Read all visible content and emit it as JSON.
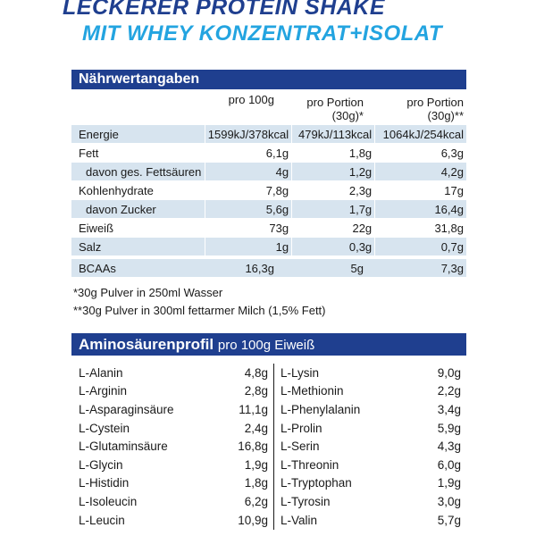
{
  "header": {
    "line1": "LECKERER PROTEIN SHAKE",
    "line2": "MIT WHEY KONZENTRAT+ISOLAT"
  },
  "nutrition": {
    "title": "Nährwertangaben",
    "columns": [
      "pro 100g",
      "pro Portion",
      "(30g)*",
      "pro Portion",
      "(30g)**"
    ],
    "rows": [
      {
        "label": "Energie",
        "indent": false,
        "v1": "1599kJ/378kcal",
        "v2": "479kJ/113kcal",
        "v3": "1064kJ/254kcal"
      },
      {
        "label": "Fett",
        "indent": false,
        "v1": "6,1g",
        "v2": "1,8g",
        "v3": "6,3g"
      },
      {
        "label": "davon ges. Fettsäuren",
        "indent": true,
        "v1": "4g",
        "v2": "1,2g",
        "v3": "4,2g"
      },
      {
        "label": "Kohlenhydrate",
        "indent": false,
        "v1": "7,8g",
        "v2": "2,3g",
        "v3": "17g"
      },
      {
        "label": "davon Zucker",
        "indent": true,
        "v1": "5,6g",
        "v2": "1,7g",
        "v3": "16,4g"
      },
      {
        "label": "Eiweiß",
        "indent": false,
        "v1": "73g",
        "v2": "22g",
        "v3": "31,8g"
      },
      {
        "label": "Salz",
        "indent": false,
        "v1": "1g",
        "v2": "0,3g",
        "v3": "0,7g"
      }
    ],
    "bcaa": {
      "label": "BCAAs",
      "v1": "16,3g",
      "v2": "5g",
      "v3": "7,3g"
    }
  },
  "footnotes": {
    "note1": "*30g Pulver in 250ml Wasser",
    "note2": "**30g Pulver in 300ml fettarmer Milch (1,5% Fett)"
  },
  "amino": {
    "title": "Aminosäurenprofil",
    "subtitle": "pro 100g Eiweiß",
    "rows": [
      {
        "left_name": "L-Alanin",
        "left_value": "4,8g",
        "right_name": "L-Lysin",
        "right_value": "9,0g"
      },
      {
        "left_name": "L-Arginin",
        "left_value": "2,8g",
        "right_name": "L-Methionin",
        "right_value": "2,2g"
      },
      {
        "left_name": "L-Asparaginsäure",
        "left_value": "11,1g",
        "right_name": "L-Phenylalanin",
        "right_value": "3,4g"
      },
      {
        "left_name": "L-Cystein",
        "left_value": "2,4g",
        "right_name": "L-Prolin",
        "right_value": "5,9g"
      },
      {
        "left_name": "L-Glutaminsäure",
        "left_value": "16,8g",
        "right_name": "L-Serin",
        "right_value": "4,3g"
      },
      {
        "left_name": "L-Glycin",
        "left_value": "1,9g",
        "right_name": "L-Threonin",
        "right_value": "6,0g"
      },
      {
        "left_name": "L-Histidin",
        "left_value": "1,8g",
        "right_name": "L-Tryptophan",
        "right_value": "1,9g"
      },
      {
        "left_name": "L-Isoleucin",
        "left_value": "6,2g",
        "right_name": "L-Tyrosin",
        "right_value": "3,0g"
      },
      {
        "left_name": "L-Leucin",
        "left_value": "10,9g",
        "right_name": "L-Valin",
        "right_value": "5,7g"
      }
    ]
  },
  "colors": {
    "primary": "#1f3f8f",
    "accent": "#23a4e0",
    "stripe": "#d7e4ef"
  }
}
